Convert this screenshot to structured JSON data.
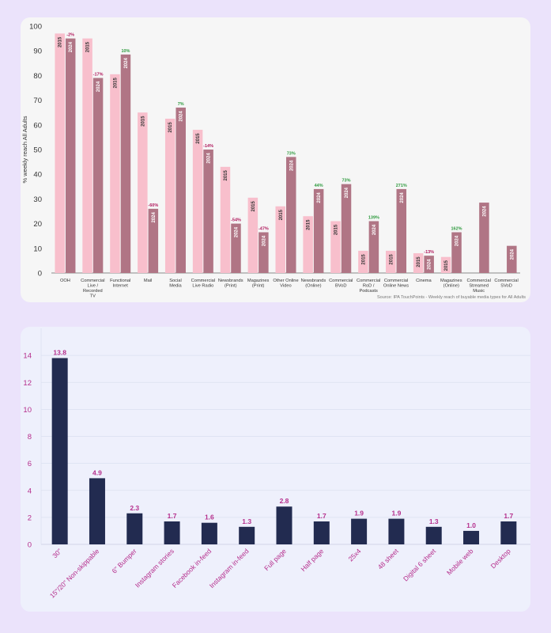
{
  "chart_data": [
    {
      "type": "bar",
      "ylabel": "% weekly reach All Adults",
      "ylim": [
        0,
        100
      ],
      "yticks": [
        0,
        10,
        20,
        30,
        40,
        50,
        60,
        70,
        80,
        90,
        100
      ],
      "categories": [
        "OOH",
        "Commercial Live / Recorded TV",
        "Functional Internet",
        "Mail",
        "Social Media",
        "Commercial Live Radio",
        "Newsbrands (Print)",
        "Magazines (Print)",
        "Other Online Video",
        "Newsbrands (Online)",
        "Commercial BVoD",
        "Commercial RoD / Podcasts",
        "Commercial Online News",
        "Cinema",
        "Magazines (Online)",
        "Commercial Streamed Music",
        "Commercial SVoD"
      ],
      "category_lines": [
        [
          "OOH"
        ],
        [
          "Commercial",
          "Live /",
          "Recorded",
          "TV"
        ],
        [
          "Functional",
          "Internet"
        ],
        [
          "Mail"
        ],
        [
          "Social",
          "Media"
        ],
        [
          "Commercial",
          "Live Radio"
        ],
        [
          "Newsbrands",
          "(Print)"
        ],
        [
          "Magazines",
          "(Print)"
        ],
        [
          "Other Online",
          "Video"
        ],
        [
          "Newsbrands",
          "(Online)"
        ],
        [
          "Commercial",
          "BVoD"
        ],
        [
          "Commercial",
          "RoD /",
          "Podcasts"
        ],
        [
          "Commercial",
          "Online News"
        ],
        [
          "Cinema"
        ],
        [
          "Magazines",
          "(Online)"
        ],
        [
          "Commercial",
          "Streamed",
          "Music"
        ],
        [
          "Commercial",
          "SVoD"
        ]
      ],
      "series": [
        {
          "name": "2015",
          "color": "#f8bfcc",
          "values": [
            97,
            95,
            80.5,
            65,
            62.5,
            58,
            43,
            30.5,
            27,
            23,
            21,
            9,
            9,
            8,
            6.5,
            null,
            null
          ]
        },
        {
          "name": "2024",
          "color": "#b07585",
          "values": [
            95,
            79,
            88.5,
            26,
            67,
            50,
            20,
            16.5,
            47,
            34,
            36,
            21,
            34,
            7,
            16.5,
            28.5,
            11
          ]
        }
      ],
      "changes": [
        "-2%",
        "-17%",
        "10%",
        "-60%",
        "7%",
        "-14%",
        "-54%",
        "-47%",
        "73%",
        "44%",
        "73%",
        "139%",
        "271%",
        "-13%",
        "162%",
        "",
        ""
      ],
      "change_colors": [
        "#b0185c",
        "#b0185c",
        "#2e9a3e",
        "#b0185c",
        "#2e9a3e",
        "#b0185c",
        "#b0185c",
        "#b0185c",
        "#2e9a3e",
        "#2e9a3e",
        "#2e9a3e",
        "#2e9a3e",
        "#2e9a3e",
        "#b0185c",
        "#2e9a3e",
        "",
        ""
      ],
      "source": "Source: IPA TouchPoints - Weekly reach of buyable media types for All Adults"
    },
    {
      "type": "bar",
      "ylim": [
        0,
        16
      ],
      "yticks": [
        0,
        2,
        4,
        6,
        8,
        10,
        12,
        14
      ],
      "bar_color": "#222b50",
      "label_color": "#b52e8c",
      "categories": [
        "30\"",
        "15\"/20\" Non-skippable",
        "6\" Bumper",
        "Instagram stories",
        "Facebook in-feed",
        "Instagram in-feed",
        "Full page",
        "Half page",
        "25x4",
        "48 sheet",
        "Digital 6 sheet",
        "Mobile web",
        "Desktop"
      ],
      "values": [
        13.8,
        4.9,
        2.3,
        1.7,
        1.6,
        1.3,
        2.8,
        1.7,
        1.9,
        1.9,
        1.3,
        1.0,
        1.7
      ],
      "value_labels": [
        "13.8",
        "4.9",
        "2.3",
        "1.7",
        "1.6",
        "1.3",
        "2.8",
        "1.7",
        "1.9",
        "1.9",
        "1.3",
        "1.0",
        "1.7"
      ]
    }
  ]
}
